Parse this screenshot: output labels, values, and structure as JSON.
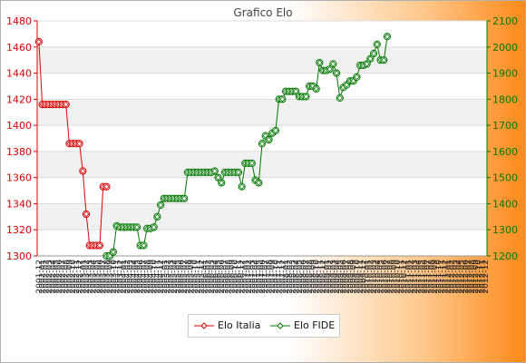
{
  "chart_data": {
    "type": "line",
    "title": "Grafico Elo",
    "y_left_ticks": [
      1300,
      1320,
      1340,
      1360,
      1380,
      1400,
      1420,
      1440,
      1460,
      1480
    ],
    "y_right_ticks": [
      1200,
      1300,
      1400,
      1500,
      1600,
      1700,
      1800,
      1900,
      2000,
      2100
    ],
    "ylim_left": [
      1300,
      1480
    ],
    "ylim_right": [
      1200,
      2100
    ],
    "grid": true,
    "legend_placement": "bottom",
    "x_ticks": [
      "2001-12",
      "2002-01",
      "2002-02",
      "2002-03",
      "2002-04",
      "2002-05",
      "2002-06",
      "2002-07",
      "2002-08",
      "2002-09",
      "2002-10",
      "2002-11",
      "2002-12",
      "2003-01",
      "2003-02",
      "2003-03",
      "2003-04",
      "2003-05",
      "2003-06",
      "2003-07",
      "2003-08",
      "2003-09",
      "2003-10",
      "2003-11",
      "2003-12",
      "2004-01",
      "2004-02",
      "2004-03",
      "2004-04",
      "2004-05",
      "2004-06",
      "2004-07",
      "2004-08",
      "2004-09",
      "2004-10",
      "2004-11",
      "2004-12",
      "2005-01",
      "2005-02",
      "2005-03",
      "2005-04",
      "2005-05",
      "2005-06",
      "2005-07",
      "2005-08",
      "2005-09",
      "2005-10",
      "2005-11",
      "2005-12",
      "2006-01",
      "2006-02",
      "2006-03",
      "2006-04",
      "2006-05",
      "2006-06",
      "2006-07",
      "2006-08",
      "2006-09",
      "2006-10",
      "2006-11",
      "2006-12",
      "2007-01",
      "2007-02",
      "2007-03",
      "2007-04",
      "2007-05",
      "2007-06",
      "2007-07",
      "2007-08",
      "2007-09",
      "2007-10",
      "2007-11",
      "2007-12",
      "2008-01",
      "2008-02",
      "2008-03",
      "2008-04",
      "2008-05",
      "2008-06",
      "2008-07",
      "2008-08",
      "2008-09",
      "2008-10",
      "2008-11",
      "2008-12",
      "2009-01",
      "2009-02",
      "2009-03",
      "2009-04",
      "2009-05",
      "2009-06",
      "2009-07",
      "2009-08",
      "2009-09",
      "2009-10",
      "2009-11",
      "2009-12",
      "2010-01",
      "2010-02",
      "2010-03",
      "2010-04",
      "2010-05",
      "2010-06",
      "2010-07",
      "2010-08",
      "2010-09",
      "2010-10",
      "2010-11",
      "2010-12",
      "2011-01",
      "2011-02",
      "2011-03",
      "2011-04",
      "2011-05",
      "2011-06",
      "2011-07",
      "2011-08",
      "2011-09",
      "2011-10",
      "2011-11",
      "2011-12",
      "2012-01",
      "2012-02",
      "2012-03",
      "2012-04",
      "2012-05",
      "2012-06",
      "2012-07",
      "2012-08",
      "2012-09",
      "2012-10",
      "2012-11",
      "2012-12"
    ],
    "series": [
      {
        "name": "Elo Italia",
        "axis": "left",
        "color": "#dd0000",
        "values": [
          1464,
          1416,
          1416,
          1416,
          1416,
          1416,
          1416,
          1416,
          1416,
          1386,
          1386,
          1386,
          1386,
          1365,
          1332,
          1308,
          1308,
          1308,
          1308,
          1353,
          1353
        ]
      },
      {
        "name": "Elo FIDE",
        "axis": "right",
        "color": "#007700",
        "start_index": 20,
        "values": [
          1200,
          1200,
          1215,
          1315,
          1310,
          1310,
          1310,
          1310,
          1310,
          1310,
          1240,
          1240,
          1305,
          1305,
          1310,
          1350,
          1395,
          1420,
          1420,
          1420,
          1420,
          1420,
          1420,
          1420,
          1520,
          1520,
          1520,
          1520,
          1520,
          1520,
          1520,
          1520,
          1525,
          1500,
          1480,
          1520,
          1520,
          1520,
          1520,
          1520,
          1465,
          1555,
          1555,
          1555,
          1490,
          1480,
          1630,
          1660,
          1645,
          1670,
          1680,
          1800,
          1800,
          1830,
          1830,
          1830,
          1830,
          1810,
          1810,
          1810,
          1850,
          1850,
          1840,
          1940,
          1910,
          1910,
          1915,
          1935,
          1900,
          1805,
          1845,
          1855,
          1870,
          1870,
          1885,
          1930,
          1930,
          1935,
          1955,
          1975,
          2010,
          1950,
          1950,
          2040
        ]
      }
    ]
  }
}
